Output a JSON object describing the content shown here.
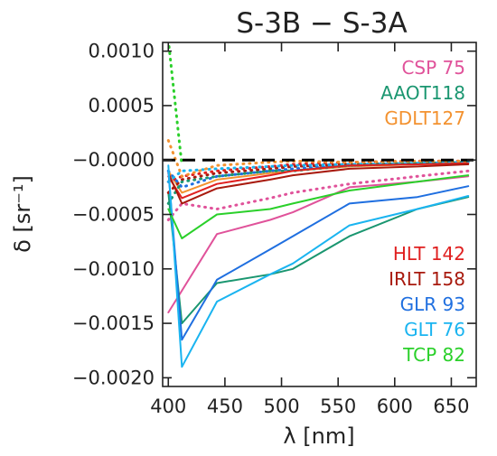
{
  "chart_data": {
    "type": "line",
    "title": "S-3B − S-3A",
    "xlabel": "λ [nm]",
    "ylabel": "δ [sr⁻¹]",
    "xlim": [
      395,
      672
    ],
    "ylim": [
      -0.00208,
      0.00108
    ],
    "xticks": [
      400,
      450,
      500,
      550,
      600,
      650
    ],
    "yticks": [
      {
        "value": 0.001,
        "label": "0.0010"
      },
      {
        "value": 0.0005,
        "label": "0.0005"
      },
      {
        "value": 0.0,
        "label": "−0.0000"
      },
      {
        "value": -0.0005,
        "label": "−0.0005"
      },
      {
        "value": -0.001,
        "label": "−0.0010"
      },
      {
        "value": -0.0015,
        "label": "−0.0015"
      },
      {
        "value": -0.002,
        "label": "−0.0020"
      }
    ],
    "zero_line": {
      "y": 0.0,
      "style": "dashed",
      "color": "#000000"
    },
    "series": [
      {
        "name": "CSP 75",
        "color": "#e0529a",
        "style": "dotted",
        "x": [
          400,
          412,
          443,
          490,
          510,
          560,
          620,
          665
        ],
        "y": [
          -0.00055,
          -0.0004,
          -0.00045,
          -0.00035,
          -0.0003,
          -0.00022,
          -0.00015,
          -0.0001
        ]
      },
      {
        "name": "AAOT118",
        "color": "#1a9670",
        "style": "dotted",
        "x": [
          400,
          412,
          443,
          490,
          510,
          560,
          620,
          665
        ],
        "y": [
          -0.0004,
          -0.0002,
          -0.00015,
          -0.0001,
          -0.0001,
          -5e-05,
          -3e-05,
          -2e-05
        ]
      },
      {
        "name": "GDLT127",
        "color": "#f39230",
        "style": "dotted",
        "x": [
          400,
          412,
          443,
          490,
          510,
          560,
          620,
          665
        ],
        "y": [
          0.00018,
          -0.00015,
          -5e-05,
          -2e-05,
          -1e-05,
          -2e-05,
          -1e-05,
          -1e-05
        ]
      },
      {
        "name": "HLT 142",
        "color": "#e02020",
        "style": "solid",
        "x": [
          400,
          412,
          443,
          490,
          510,
          560,
          620,
          665
        ],
        "y": [
          -0.00015,
          -0.00035,
          -0.00022,
          -0.00014,
          -0.0001,
          -5e-05,
          -4e-05,
          -3e-05
        ]
      },
      {
        "name": "IRLT 158",
        "color": "#a81a0e",
        "style": "solid",
        "x": [
          400,
          412,
          443,
          490,
          510,
          560,
          620,
          665
        ],
        "y": [
          -0.00012,
          -0.0004,
          -0.00026,
          -0.00018,
          -0.00014,
          -8e-05,
          -6e-05,
          -4e-05
        ]
      },
      {
        "name": "GLR 93",
        "color": "#1f6fe0",
        "style": "solid",
        "x": [
          400,
          412,
          443,
          490,
          510,
          560,
          620,
          665
        ],
        "y": [
          -0.0001,
          -0.00165,
          -0.0011,
          -0.00082,
          -0.0007,
          -0.0004,
          -0.00034,
          -0.00024
        ]
      },
      {
        "name": "GLT 76",
        "color": "#1ab4f0",
        "style": "solid",
        "x": [
          400,
          412,
          443,
          490,
          510,
          560,
          620,
          665
        ],
        "y": [
          -5e-05,
          -0.0019,
          -0.0013,
          -0.00105,
          -0.00095,
          -0.0006,
          -0.00045,
          -0.00033
        ]
      },
      {
        "name": "TCP 82",
        "color": "#2ad02a",
        "style": "solid",
        "x": [
          400,
          412,
          443,
          490,
          510,
          560,
          620,
          665
        ],
        "y": [
          -0.00045,
          -0.00072,
          -0.0005,
          -0.00045,
          -0.0004,
          -0.00028,
          -0.0002,
          -0.00014
        ]
      }
    ],
    "extra_lines": [
      {
        "color": "#e0529a",
        "style": "solid",
        "x": [
          400,
          412,
          443,
          490,
          510,
          560,
          620,
          665
        ],
        "y": [
          -0.0014,
          -0.0012,
          -0.00068,
          -0.00055,
          -0.00048,
          -0.00025,
          -0.0002,
          -0.00015
        ]
      },
      {
        "color": "#1a9670",
        "style": "solid",
        "x": [
          400,
          412,
          443,
          490,
          510,
          560,
          620,
          665
        ],
        "y": [
          -0.0003,
          -0.0015,
          -0.00113,
          -0.00105,
          -0.001,
          -0.0007,
          -0.00045,
          -0.00034
        ]
      },
      {
        "color": "#f39230",
        "style": "solid",
        "x": [
          400,
          412,
          443,
          490,
          510,
          560,
          620,
          665
        ],
        "y": [
          -0.0001,
          -0.0003,
          -0.00018,
          -0.00012,
          -0.0001,
          -6e-05,
          -4e-05,
          -3e-05
        ]
      },
      {
        "color": "#e02020",
        "style": "dotted",
        "x": [
          400,
          412,
          443,
          490,
          510,
          560,
          620,
          665
        ],
        "y": [
          -0.0002,
          -0.00015,
          -0.0001,
          -6e-05,
          -4e-05,
          -2e-05,
          -1e-05,
          -1e-05
        ]
      },
      {
        "color": "#a81a0e",
        "style": "dotted",
        "x": [
          400,
          412,
          443,
          490,
          510,
          560,
          620,
          665
        ],
        "y": [
          -0.0003,
          -0.00018,
          -0.00012,
          -8e-05,
          -6e-05,
          -4e-05,
          -3e-05,
          -2e-05
        ]
      },
      {
        "color": "#1f6fe0",
        "style": "dotted",
        "x": [
          400,
          412,
          443,
          490,
          510,
          560,
          620,
          665
        ],
        "y": [
          -0.0001,
          -0.00025,
          -0.00015,
          -0.0001,
          -8e-05,
          -5e-05,
          -3e-05,
          -2e-05
        ]
      },
      {
        "color": "#1ab4f0",
        "style": "dotted",
        "x": [
          400,
          412,
          443,
          490,
          510,
          560,
          620,
          665
        ],
        "y": [
          -0.0002,
          -0.0001,
          -8e-05,
          -6e-05,
          -5e-05,
          -4e-05,
          -3e-05,
          -2e-05
        ]
      },
      {
        "color": "#2ad02a",
        "style": "dotted",
        "x": [
          400,
          412
        ],
        "y": [
          0.0011,
          -5e-05
        ]
      }
    ],
    "legend_top": [
      {
        "label": "CSP 75",
        "color": "#e0529a"
      },
      {
        "label": "AAOT118",
        "color": "#1a9670"
      },
      {
        "label": "GDLT127",
        "color": "#f39230"
      }
    ],
    "legend_bottom": [
      {
        "label": "HLT 142",
        "color": "#e02020"
      },
      {
        "label": "IRLT 158",
        "color": "#a81a0e"
      },
      {
        "label": "GLR 93",
        "color": "#1f6fe0"
      },
      {
        "label": "GLT 76",
        "color": "#1ab4f0"
      },
      {
        "label": "TCP 82",
        "color": "#2ad02a"
      }
    ],
    "legend_placement_top": "top-right",
    "legend_placement_bottom": "bottom-right",
    "grid": false
  }
}
